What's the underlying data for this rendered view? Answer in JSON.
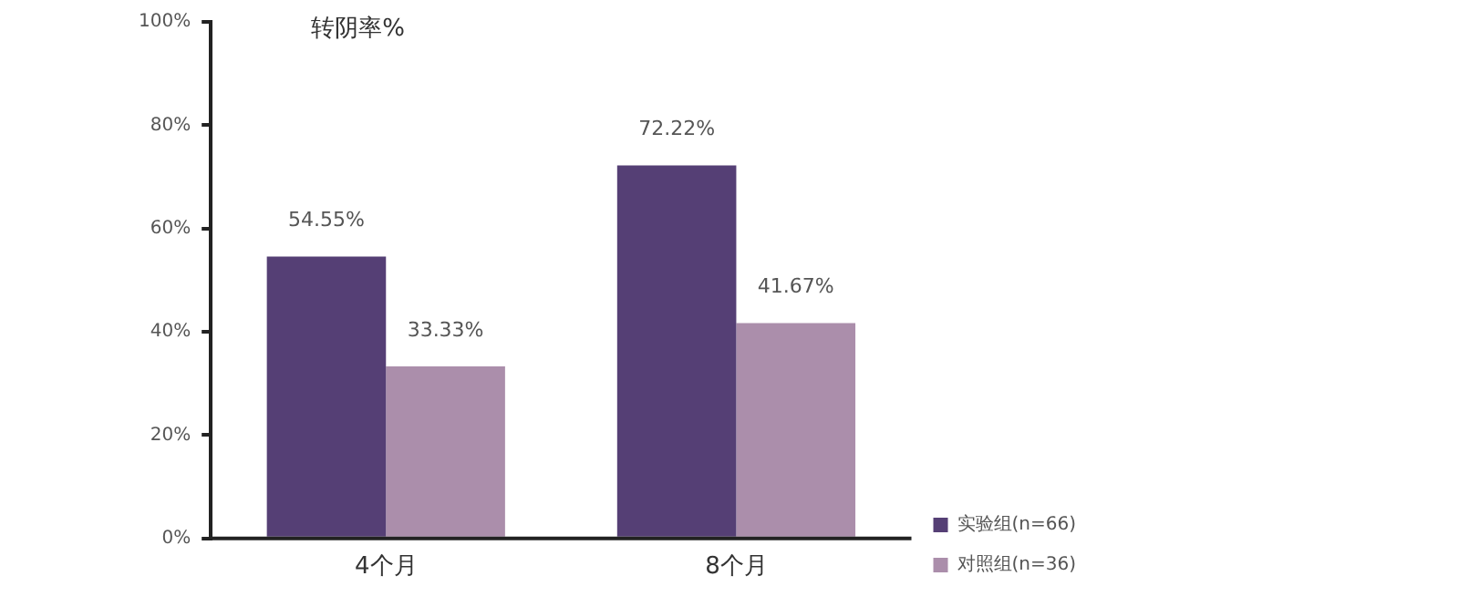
{
  "chart_data": {
    "type": "bar",
    "ylabel": "转阴率%",
    "categories": [
      "4个月",
      "8个月"
    ],
    "series": [
      {
        "name": "实验组(n=66)",
        "color": "#553f75",
        "values": [
          54.55,
          72.22
        ],
        "value_labels": [
          "54.55%",
          "72.22%"
        ]
      },
      {
        "name": "对照组(n=36)",
        "color": "#ab8eab",
        "values": [
          33.33,
          41.67
        ],
        "value_labels": [
          "33.33%",
          "41.67%"
        ]
      }
    ],
    "ylim": [
      0,
      100
    ],
    "yticks": [
      {
        "value": 0,
        "label": "0%"
      },
      {
        "value": 20,
        "label": "20%"
      },
      {
        "value": 40,
        "label": "40%"
      },
      {
        "value": 60,
        "label": "60%"
      },
      {
        "value": 80,
        "label": "80%"
      },
      {
        "value": 100,
        "label": "100%"
      }
    ],
    "grid": false,
    "legend": "bottom right"
  }
}
